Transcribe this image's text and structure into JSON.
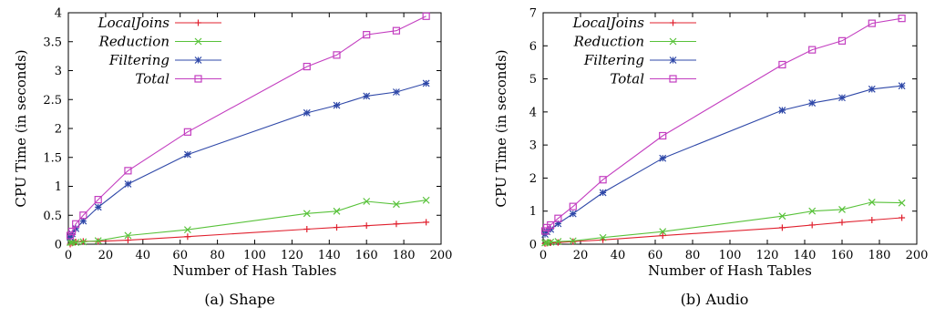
{
  "chart_data": [
    {
      "type": "line",
      "caption": "(a) Shape",
      "xlabel": "Number of Hash Tables",
      "ylabel": "CPU Time (in seconds)",
      "xlim": [
        0,
        200
      ],
      "ylim": [
        0,
        4
      ],
      "xticks": [
        0,
        20,
        40,
        60,
        80,
        100,
        120,
        140,
        160,
        180,
        200
      ],
      "yticks": [
        0,
        0.5,
        1,
        1.5,
        2,
        2.5,
        3,
        3.5,
        4
      ],
      "ytick_labels": [
        "0",
        "0.5",
        "1",
        "1.5",
        "2",
        "2.5",
        "3",
        "3.5",
        "4"
      ],
      "grid": false,
      "legend_position": "top-left",
      "x": [
        1,
        2,
        4,
        8,
        16,
        32,
        64,
        128,
        144,
        160,
        176,
        192
      ],
      "series": [
        {
          "name": "LocalJoins",
          "marker": "plus",
          "color": "#e0202e",
          "values": [
            0.0,
            0.02,
            0.04,
            0.05,
            0.05,
            0.07,
            0.13,
            0.26,
            0.29,
            0.32,
            0.35,
            0.38
          ]
        },
        {
          "name": "Reduction",
          "marker": "cross",
          "color": "#58c23a",
          "values": [
            0.03,
            0.03,
            0.03,
            0.04,
            0.06,
            0.15,
            0.25,
            0.53,
            0.57,
            0.74,
            0.69,
            0.76
          ]
        },
        {
          "name": "Filtering",
          "marker": "star",
          "color": "#2f48a8",
          "values": [
            0.12,
            0.18,
            0.27,
            0.4,
            0.64,
            1.04,
            1.55,
            2.27,
            2.4,
            2.56,
            2.63,
            2.78
          ]
        },
        {
          "name": "Total",
          "marker": "square",
          "color": "#c33ec0",
          "values": [
            0.15,
            0.22,
            0.35,
            0.5,
            0.77,
            1.27,
            1.94,
            3.07,
            3.27,
            3.62,
            3.69,
            3.94
          ]
        }
      ]
    },
    {
      "type": "line",
      "caption": "(b) Audio",
      "xlabel": "Number of Hash Tables",
      "ylabel": "CPU Time (in seconds)",
      "xlim": [
        0,
        200
      ],
      "ylim": [
        0,
        7
      ],
      "xticks": [
        0,
        20,
        40,
        60,
        80,
        100,
        120,
        140,
        160,
        180,
        200
      ],
      "yticks": [
        0,
        1,
        2,
        3,
        4,
        5,
        6,
        7
      ],
      "ytick_labels": [
        "0",
        "1",
        "2",
        "3",
        "4",
        "5",
        "6",
        "7"
      ],
      "grid": false,
      "legend_position": "top-left",
      "x": [
        1,
        2,
        4,
        8,
        16,
        32,
        64,
        128,
        144,
        160,
        176,
        192
      ],
      "series": [
        {
          "name": "LocalJoins",
          "marker": "plus",
          "color": "#e0202e",
          "values": [
            0.02,
            0.03,
            0.04,
            0.05,
            0.08,
            0.13,
            0.26,
            0.5,
            0.58,
            0.66,
            0.73,
            0.8
          ]
        },
        {
          "name": "Reduction",
          "marker": "cross",
          "color": "#58c23a",
          "values": [
            0.04,
            0.05,
            0.06,
            0.08,
            0.1,
            0.2,
            0.38,
            0.85,
            1.0,
            1.05,
            1.27,
            1.25
          ]
        },
        {
          "name": "Filtering",
          "marker": "star",
          "color": "#2f48a8",
          "values": [
            0.3,
            0.38,
            0.45,
            0.62,
            0.92,
            1.56,
            2.6,
            4.05,
            4.27,
            4.43,
            4.69,
            4.79
          ]
        },
        {
          "name": "Total",
          "marker": "square",
          "color": "#c33ec0",
          "values": [
            0.4,
            0.5,
            0.58,
            0.78,
            1.14,
            1.95,
            3.28,
            5.43,
            5.88,
            6.15,
            6.68,
            6.83
          ]
        }
      ]
    }
  ]
}
